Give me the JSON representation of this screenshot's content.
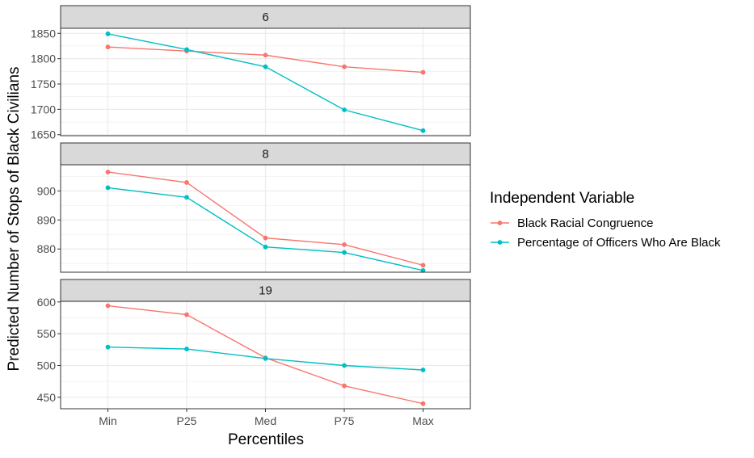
{
  "chart_data": {
    "type": "line",
    "xlabel": "Percentiles",
    "ylabel": "Predicted Number of Stops of Black Civilians",
    "categories": [
      "Min",
      "P25",
      "Med",
      "P75",
      "Max"
    ],
    "legend": {
      "title": "Independent Variable",
      "placement": "right"
    },
    "colors": {
      "Black Racial Congruence": "#F8766D",
      "Percentage of Officers Who Are Black": "#00BFC4"
    },
    "grid": true,
    "panels": [
      {
        "label": "6",
        "ylim": [
          1648,
          1860
        ],
        "yticks": [
          1650,
          1700,
          1750,
          1800,
          1850
        ],
        "series": [
          {
            "name": "Black Racial Congruence",
            "values": [
              1823,
              1815,
              1807,
              1784,
              1773
            ]
          },
          {
            "name": "Percentage of Officers Who Are Black",
            "values": [
              1849,
              1818,
              1784,
              1699,
              1658
            ]
          }
        ]
      },
      {
        "label": "8",
        "ylim": [
          872,
          909
        ],
        "yticks": [
          880,
          890,
          900
        ],
        "series": [
          {
            "name": "Black Racial Congruence",
            "values": [
              906.5,
              902.9,
              883.8,
              881.5,
              874.4
            ]
          },
          {
            "name": "Percentage of Officers Who Are Black",
            "values": [
              901.1,
              897.8,
              880.7,
              878.8,
              872.6
            ]
          }
        ]
      },
      {
        "label": "19",
        "ylim": [
          432,
          601
        ],
        "yticks": [
          450,
          500,
          550,
          600
        ],
        "series": [
          {
            "name": "Black Racial Congruence",
            "values": [
              594,
              580,
              512,
              468,
              440
            ]
          },
          {
            "name": "Percentage of Officers Who Are Black",
            "values": [
              529,
              526,
              511,
              500,
              493
            ]
          }
        ]
      }
    ]
  }
}
